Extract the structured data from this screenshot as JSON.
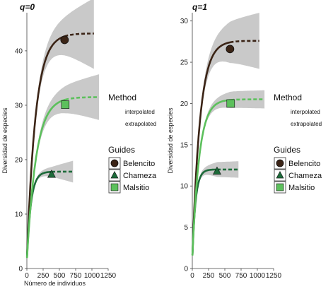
{
  "chart_data": [
    {
      "type": "line",
      "panel_title": "q=0",
      "xlabel": "Número de individuos",
      "ylabel": "Diversidad de especies",
      "xlim": [
        0,
        1250
      ],
      "ylim": [
        0,
        47
      ],
      "x_ticks": [
        0,
        250,
        500,
        750,
        1000,
        1250
      ],
      "y_ticks": [
        0,
        10,
        20,
        30,
        40
      ],
      "series": [
        {
          "name": "Belencito",
          "color": "#3b2416",
          "marker": "circle",
          "observed": {
            "x": 580,
            "y": 42
          },
          "x_max": 1030,
          "asymptote": 43.2,
          "y0": 1.5,
          "k": 0.0075,
          "band": {
            "interp_half": 3.5,
            "extrap_half": 6.5
          }
        },
        {
          "name": "Chameza",
          "color": "#1d6b3a",
          "marker": "triangle",
          "observed": {
            "x": 380,
            "y": 17.3
          },
          "x_max": 710,
          "asymptote": 17.8,
          "y0": 1.5,
          "k": 0.016,
          "band": {
            "interp_half": 0.9,
            "extrap_half": 2.0
          }
        },
        {
          "name": "Malsitio",
          "color": "#5cc05c",
          "marker": "square",
          "observed": {
            "x": 590,
            "y": 30.1
          },
          "x_max": 1110,
          "asymptote": 31.5,
          "y0": 1.5,
          "k": 0.007,
          "band": {
            "interp_half": 2.5,
            "extrap_half": 4.2
          }
        }
      ]
    },
    {
      "type": "line",
      "panel_title": "q=1",
      "xlabel": "",
      "ylabel": "Diversidad de especies",
      "xlim": [
        0,
        1250
      ],
      "ylim": [
        0,
        31
      ],
      "x_ticks": [
        0,
        250,
        500,
        750,
        1000,
        1250
      ],
      "y_ticks": [
        0,
        5,
        10,
        15,
        20,
        25,
        30
      ],
      "series": [
        {
          "name": "Belencito",
          "color": "#3b2416",
          "marker": "circle",
          "observed": {
            "x": 580,
            "y": 26.6
          },
          "x_max": 1030,
          "asymptote": 27.6,
          "y0": 1.2,
          "k": 0.0085,
          "band": {
            "interp_half": 2.5,
            "extrap_half": 3.4
          }
        },
        {
          "name": "Chameza",
          "color": "#1d6b3a",
          "marker": "triangle",
          "observed": {
            "x": 380,
            "y": 11.8
          },
          "x_max": 710,
          "asymptote": 12.0,
          "y0": 1.2,
          "k": 0.02,
          "band": {
            "interp_half": 0.9,
            "extrap_half": 1.0
          }
        },
        {
          "name": "Malsitio",
          "color": "#5cc05c",
          "marker": "square",
          "observed": {
            "x": 590,
            "y": 20.0
          },
          "x_max": 1110,
          "asymptote": 20.5,
          "y0": 1.2,
          "k": 0.0095,
          "band": {
            "interp_half": 1.0,
            "extrap_half": 1.1
          }
        }
      ]
    }
  ],
  "legend": {
    "method_title": "Method",
    "method_items": [
      "interpolated",
      "extrapolated"
    ],
    "guides_title": "Guides",
    "guides": [
      {
        "label": "Belencito",
        "color": "#3b2416",
        "marker": "circle"
      },
      {
        "label": "Chameza",
        "color": "#1d6b3a",
        "marker": "triangle"
      },
      {
        "label": "Malsitio",
        "color": "#5cc05c",
        "marker": "square"
      }
    ]
  },
  "colors": {
    "band": "#c9c9c9"
  }
}
